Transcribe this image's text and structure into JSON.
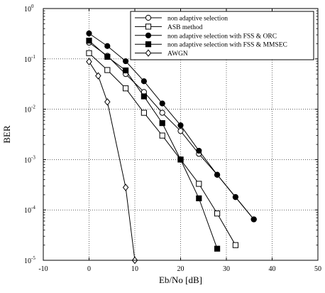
{
  "chart_data": {
    "type": "line",
    "title": "",
    "xlabel": "Eb/No [dB]",
    "ylabel": "BER",
    "xlim": [
      -10,
      50
    ],
    "ylim": [
      1e-05,
      1
    ],
    "yscale": "log",
    "grid": true,
    "grid_style": "dotted",
    "legend_position": "top-right",
    "x_ticks": [
      "-10",
      "0",
      "10",
      "20",
      "30",
      "40",
      "50"
    ],
    "y_ticks": [
      {
        "exp": "0",
        "value": 1
      },
      {
        "exp": "-1",
        "value": 0.1
      },
      {
        "exp": "-2",
        "value": 0.01
      },
      {
        "exp": "-3",
        "value": 0.001
      },
      {
        "exp": "-4",
        "value": 0.0001
      },
      {
        "exp": "-5",
        "value": 1e-05
      }
    ],
    "series": [
      {
        "name": "non adaptive selection",
        "marker": "circle-open",
        "points": [
          [
            0,
            0.21
          ],
          [
            4,
            0.115
          ],
          [
            8,
            0.05
          ],
          [
            12,
            0.022
          ],
          [
            16,
            0.0085
          ],
          [
            20,
            0.0037
          ],
          [
            24,
            0.0013
          ],
          [
            28,
            0.0005
          ],
          [
            32,
            0.00018
          ],
          [
            36,
            6.5e-05
          ]
        ]
      },
      {
        "name": "ASB method",
        "marker": "square-open",
        "points": [
          [
            0,
            0.13
          ],
          [
            4,
            0.06
          ],
          [
            8,
            0.026
          ],
          [
            12,
            0.0085
          ],
          [
            16,
            0.003
          ],
          [
            20,
            0.001
          ],
          [
            24,
            0.00033
          ],
          [
            28,
            8.5e-05
          ],
          [
            32,
            2e-05
          ]
        ]
      },
      {
        "name": "non adaptive selection with FSS & ORC",
        "marker": "circle-filled",
        "points": [
          [
            0,
            0.32
          ],
          [
            4,
            0.18
          ],
          [
            8,
            0.09
          ],
          [
            12,
            0.036
          ],
          [
            16,
            0.013
          ],
          [
            20,
            0.0048
          ],
          [
            24,
            0.0015
          ],
          [
            28,
            0.0005
          ],
          [
            32,
            0.00018
          ],
          [
            36,
            6.5e-05
          ]
        ]
      },
      {
        "name": "non adaptive selection with FSS & MMSEC",
        "marker": "square-filled",
        "points": [
          [
            0,
            0.23
          ],
          [
            4,
            0.11
          ],
          [
            8,
            0.059
          ],
          [
            12,
            0.018
          ],
          [
            16,
            0.0053
          ],
          [
            20,
            0.001
          ],
          [
            24,
            0.00017
          ],
          [
            28,
            1.7e-05
          ]
        ]
      },
      {
        "name": "AWGN",
        "marker": "diamond-open",
        "points": [
          [
            0,
            0.088
          ],
          [
            2,
            0.046
          ],
          [
            4,
            0.014
          ],
          [
            8,
            0.00028
          ],
          [
            10,
            1e-05
          ]
        ]
      }
    ]
  }
}
